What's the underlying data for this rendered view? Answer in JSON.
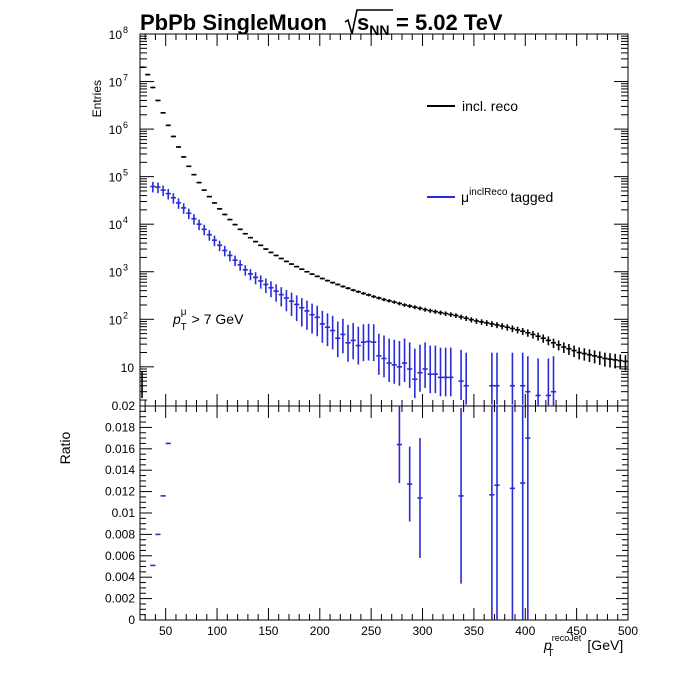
{
  "chart_data": [
    {
      "type": "bar",
      "title_main": "PbPb SingleMuon",
      "title_energy": "= 5.02 TeV",
      "title_sub": "NN",
      "ylabel": "Entries",
      "ylog": true,
      "ylim": [
        1.5,
        100000000
      ],
      "xlim": [
        25,
        500
      ],
      "legend": "right",
      "annotation_p": "p",
      "annotation_sup": "μ",
      "annotation_sub": "T",
      "annotation_rest": "> 7 GeV",
      "y_ticks": [
        {
          "v": 10,
          "base": "10",
          "exp": ""
        },
        {
          "v": 100,
          "base": "10",
          "exp": "2"
        },
        {
          "v": 1000,
          "base": "10",
          "exp": "3"
        },
        {
          "v": 10000,
          "base": "10",
          "exp": "4"
        },
        {
          "v": 100000,
          "base": "10",
          "exp": "5"
        },
        {
          "v": 1000000,
          "base": "10",
          "exp": "6"
        },
        {
          "v": 10000000,
          "base": "10",
          "exp": "7"
        },
        {
          "v": 100000000,
          "base": "10",
          "exp": "8"
        }
      ],
      "series": [
        {
          "name": "incl. reco",
          "color": "#000000",
          "bin_width": 5,
          "x": [
            27.5,
            32.5,
            37.5,
            42.5,
            47.5,
            52.5,
            57.5,
            62.5,
            67.5,
            72.5,
            77.5,
            82.5,
            87.5,
            92.5,
            97.5,
            102.5,
            107.5,
            112.5,
            117.5,
            122.5,
            127.5,
            132.5,
            137.5,
            142.5,
            147.5,
            152.5,
            157.5,
            162.5,
            167.5,
            172.5,
            177.5,
            182.5,
            187.5,
            192.5,
            197.5,
            202.5,
            207.5,
            212.5,
            217.5,
            222.5,
            227.5,
            232.5,
            237.5,
            242.5,
            247.5,
            252.5,
            257.5,
            262.5,
            267.5,
            272.5,
            277.5,
            282.5,
            287.5,
            292.5,
            297.5,
            302.5,
            307.5,
            312.5,
            317.5,
            322.5,
            327.5,
            332.5,
            337.5,
            342.5,
            347.5,
            352.5,
            357.5,
            362.5,
            367.5,
            372.5,
            377.5,
            382.5,
            387.5,
            392.5,
            397.5,
            402.5,
            407.5,
            412.5,
            417.5,
            422.5,
            427.5,
            432.5,
            437.5,
            442.5,
            447.5,
            452.5,
            457.5,
            462.5,
            467.5,
            472.5,
            477.5,
            482.5,
            487.5,
            492.5,
            497.5
          ],
          "y": [
            20000000,
            14000000,
            7500000,
            4000000,
            2200000,
            1200000,
            700000,
            420000,
            260000,
            165000,
            110000,
            75000,
            52000,
            38000,
            28000,
            21000,
            16000,
            12500,
            9800,
            7800,
            6300,
            5200,
            4300,
            3600,
            3000,
            2550,
            2200,
            1900,
            1650,
            1450,
            1280,
            1130,
            1000,
            890,
            800,
            720,
            650,
            590,
            540,
            490,
            450,
            410,
            380,
            350,
            325,
            300,
            280,
            260,
            245,
            230,
            215,
            200,
            190,
            180,
            170,
            160,
            152,
            145,
            138,
            132,
            126,
            120,
            112,
            105,
            98,
            92,
            88,
            84,
            80,
            76,
            72,
            68,
            64,
            60,
            56,
            52,
            48,
            44,
            40,
            36,
            32,
            29,
            26,
            24,
            22,
            20,
            19,
            18,
            17,
            16,
            15,
            14.5,
            14,
            13.5,
            13
          ],
          "err_rel": 0.04
        },
        {
          "name": "tagged",
          "label_base": "μ",
          "label_sup": "inclReco",
          "label_rest": "tagged",
          "color": "#2b2bd6",
          "bin_width": 5,
          "x": [
            37.5,
            42.5,
            47.5,
            52.5,
            57.5,
            62.5,
            67.5,
            72.5,
            77.5,
            82.5,
            87.5,
            92.5,
            97.5,
            102.5,
            107.5,
            112.5,
            117.5,
            122.5,
            127.5,
            132.5,
            137.5,
            142.5,
            147.5,
            152.5,
            157.5,
            162.5,
            167.5,
            172.5,
            177.5,
            182.5,
            187.5,
            192.5,
            197.5,
            202.5,
            207.5,
            212.5,
            217.5,
            222.5,
            227.5,
            232.5,
            237.5,
            242.5,
            247.5,
            252.5,
            257.5,
            262.5,
            267.5,
            272.5,
            277.5,
            282.5,
            287.5,
            292.5,
            297.5,
            302.5,
            307.5,
            312.5,
            317.5,
            322.5,
            327.5,
            337.5,
            342.5,
            367.5,
            372.5,
            387.5,
            397.5,
            402.5,
            412.5,
            422.5,
            427.5
          ],
          "y": [
            62000,
            60000,
            52000,
            44000,
            36000,
            28000,
            22000,
            17000,
            13000,
            10000,
            7800,
            6000,
            4600,
            3600,
            2800,
            2200,
            1750,
            1400,
            1100,
            900,
            760,
            640,
            540,
            460,
            390,
            330,
            280,
            240,
            205,
            175,
            150,
            125,
            110,
            80,
            68,
            58,
            40,
            48,
            32,
            36,
            28,
            33,
            34,
            33,
            17,
            15,
            12,
            11,
            10,
            12,
            9,
            5.5,
            7.5,
            9,
            7,
            7,
            6,
            6,
            6,
            5,
            4,
            4,
            4,
            4,
            4,
            3,
            2.5,
            2.5,
            3
          ],
          "err_rel": 0.25
        }
      ]
    },
    {
      "type": "scatter",
      "ylabel": "Ratio",
      "xlabel_base": "p",
      "xlabel_sup": "recoJet",
      "xlabel_sub": "T",
      "xlabel_rest": "[GeV]",
      "xlim": [
        25,
        500
      ],
      "ylim": [
        0,
        0.02
      ],
      "x_ticks": [
        "50",
        "100",
        "150",
        "200",
        "250",
        "300",
        "350",
        "400",
        "450",
        "500"
      ],
      "y_ticks": [
        "0",
        "0.002",
        "0.004",
        "0.006",
        "0.008",
        "0.01",
        "0.012",
        "0.014",
        "0.016",
        "0.018",
        "0.02"
      ],
      "series": [
        {
          "name": "",
          "color": "#2b2bd6",
          "bin_width": 5,
          "points": [
            {
              "x": 37.5,
              "y": 0.0051,
              "err": 0.0
            },
            {
              "x": 42.5,
              "y": 0.008,
              "err": 0.0
            },
            {
              "x": 47.5,
              "y": 0.0116,
              "err": 0.0
            },
            {
              "x": 52.5,
              "y": 0.0165,
              "err": 0.0
            },
            {
              "x": 277.5,
              "y": 0.0164,
              "err": 0.0036
            },
            {
              "x": 287.5,
              "y": 0.0127,
              "err": 0.0035
            },
            {
              "x": 297.5,
              "y": 0.0114,
              "err": 0.0056
            },
            {
              "x": 337.5,
              "y": 0.0116,
              "err": 0.0082
            },
            {
              "x": 367.5,
              "y": 0.0117,
              "err": 0.012
            },
            {
              "x": 372.5,
              "y": 0.0126,
              "err": 0.0126
            },
            {
              "x": 387.5,
              "y": 0.0123,
              "err": 0.0123
            },
            {
              "x": 397.5,
              "y": 0.0128,
              "err": 0.0128
            },
            {
              "x": 402.5,
              "y": 0.017,
              "err": 0.017
            }
          ]
        }
      ]
    }
  ]
}
